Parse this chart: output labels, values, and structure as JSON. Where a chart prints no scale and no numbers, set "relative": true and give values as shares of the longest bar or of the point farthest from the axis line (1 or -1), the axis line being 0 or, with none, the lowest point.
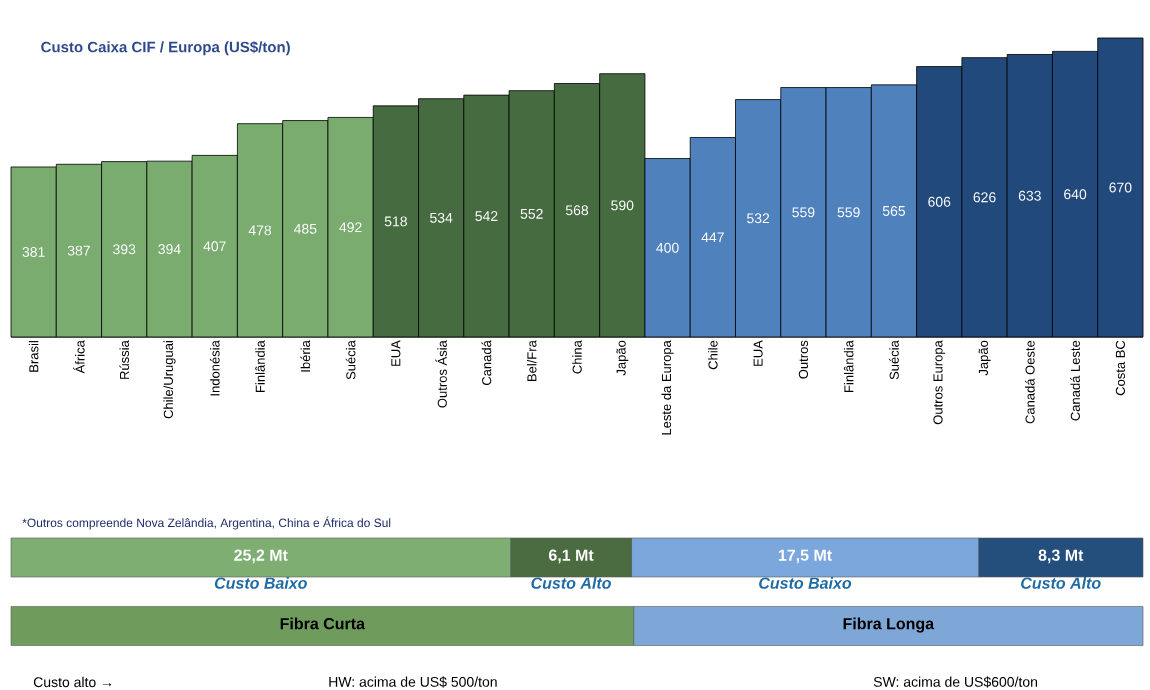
{
  "chart_data": [
    {
      "type": "bar",
      "title": "Custo Caixa CIF / Europa (US$/ton)",
      "categories": [
        "Brasil",
        "África",
        "Rússia",
        "Chile/Uruguai",
        "Indonésia",
        "Finlândia",
        "Ibéria",
        "Suécia",
        "EUA",
        "Outros Ásia",
        "Canadá",
        "Bel/Fra",
        "China",
        "Japão",
        "Leste da Europa",
        "Chile",
        "EUA",
        "Outros",
        "Finlândia",
        "Suécia",
        "Outros Europa",
        "Japão",
        "Canadá Oeste",
        "Canadá Leste",
        "Costa BC"
      ],
      "values": [
        381,
        387,
        393,
        394,
        407,
        478,
        485,
        492,
        518,
        534,
        542,
        552,
        568,
        590,
        400,
        447,
        532,
        559,
        559,
        565,
        606,
        626,
        633,
        640,
        670
      ],
      "colors": [
        "#7aab6f",
        "#7aab6f",
        "#7aab6f",
        "#7aab6f",
        "#7aab6f",
        "#7aab6f",
        "#7aab6f",
        "#7aab6f",
        "#466b40",
        "#466b40",
        "#466b40",
        "#466b40",
        "#466b40",
        "#466b40",
        "#4f81bd",
        "#4f81bd",
        "#4f81bd",
        "#4f81bd",
        "#4f81bd",
        "#4f81bd",
        "#22497c",
        "#22497c",
        "#22497c",
        "#22497c",
        "#22497c"
      ],
      "data_labels": true,
      "annotations": [
        "*Outros compreende Nova Zelândia, Argentina, China e África do Sul"
      ]
    },
    {
      "type": "bar",
      "orientation": "horizontal",
      "stacked": true,
      "categories": [
        null
      ],
      "series": [
        {
          "name": "Custo Baixo",
          "color": "#7fae72",
          "values": [
            25.2
          ],
          "value_labels": [
            "25,2 Mt"
          ]
        },
        {
          "name": "Custo Alto",
          "color": "#4b6b40",
          "values": [
            6.1
          ],
          "value_labels": [
            "6,1 Mt"
          ]
        },
        {
          "name": "Custo Baixo",
          "color": "#7ba7dc",
          "values": [
            17.5
          ],
          "value_labels": [
            "17,5 Mt"
          ]
        },
        {
          "name": "Custo Alto",
          "color": "#244e7b",
          "values": [
            8.3
          ],
          "value_labels": [
            "8,3 Mt"
          ]
        }
      ]
    },
    {
      "type": "bar",
      "orientation": "horizontal",
      "stacked": true,
      "relative": true,
      "categories": [
        null
      ],
      "series": [
        {
          "name": "Fibra Curta",
          "color": "#6f9c5c",
          "values": [
            0.55
          ]
        },
        {
          "name": "Fibra Longa",
          "color": "#7ea6d6",
          "values": [
            0.45
          ]
        }
      ],
      "annotations": [
        "Custo alto →",
        "HW: acima de US$ 500/ton",
        "SW: acima de US$600/ton"
      ]
    }
  ]
}
